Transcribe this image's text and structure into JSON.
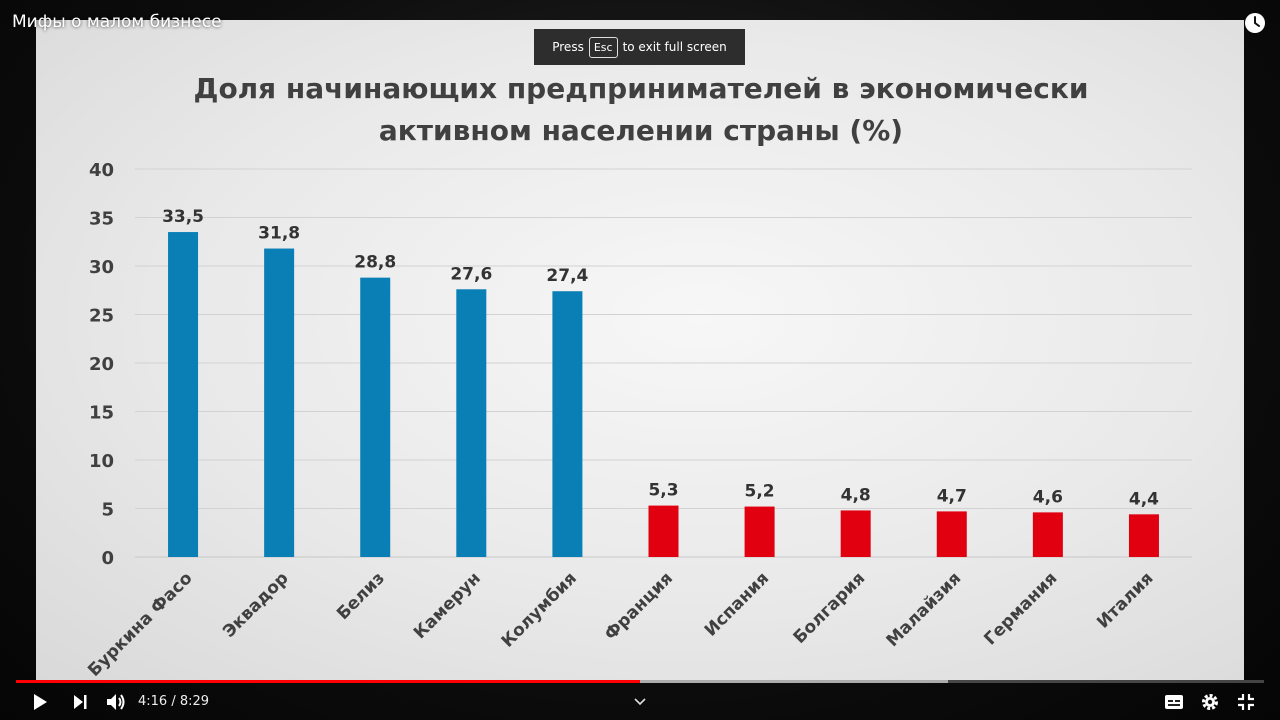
{
  "player": {
    "video_title": "Мифы о малом бизнесе",
    "toast_press": "Press",
    "toast_key": "Esc",
    "toast_rest": "to exit full screen",
    "time_display": "4:16 / 8:29",
    "played_fraction": 0.5,
    "buffered_fraction": 0.747,
    "accent_color": "#ff0000",
    "icons": [
      "clock-icon",
      "play-icon",
      "next-icon",
      "volume-icon",
      "chevron-down-icon",
      "subtitles-icon",
      "settings-icon",
      "exit-fullscreen-icon"
    ]
  },
  "chart_data": {
    "type": "bar",
    "title": "Доля начинающих предпринимателей  в экономически активном населении страны (%)",
    "title_lines": [
      "Доля начинающих предпринимателей  в экономически",
      "активном населении страны (%)"
    ],
    "categories": [
      "Буркина Фасо",
      "Эквадор",
      "Белиз",
      "Камерун",
      "Колумбия",
      "Франция",
      "Испания",
      "Болгария",
      "Малайзия",
      "Германия",
      "Италия"
    ],
    "values": [
      33.5,
      31.8,
      28.8,
      27.6,
      27.4,
      5.3,
      5.2,
      4.8,
      4.7,
      4.6,
      4.4
    ],
    "value_labels": [
      "33,5",
      "31,8",
      "28,8",
      "27,6",
      "27,4",
      "5,3",
      "5,2",
      "4,8",
      "4,7",
      "4,6",
      "4,4"
    ],
    "bar_colors": [
      "#0a7fb5",
      "#0a7fb5",
      "#0a7fb5",
      "#0a7fb5",
      "#0a7fb5",
      "#e00010",
      "#e00010",
      "#e00010",
      "#e00010",
      "#e00010",
      "#e00010"
    ],
    "ylim": [
      0,
      40
    ],
    "yticks": [
      0,
      5,
      10,
      15,
      20,
      25,
      30,
      35,
      40
    ],
    "grid": true,
    "legend": "none",
    "xlabel": "",
    "ylabel": ""
  }
}
